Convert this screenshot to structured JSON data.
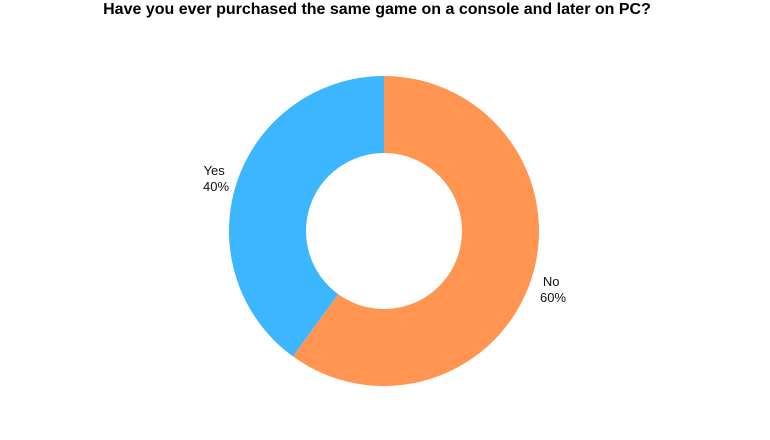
{
  "chart_data": {
    "type": "pie",
    "title": "Have you ever purchased the same game on a console and later on PC?",
    "donut": true,
    "start": "top, clockwise",
    "slices": [
      {
        "label": "No",
        "value": 60,
        "display": "60%",
        "color": "#FF9550"
      },
      {
        "label": "Yes",
        "value": 40,
        "display": "40%",
        "color": "#3BB6FF"
      }
    ]
  }
}
